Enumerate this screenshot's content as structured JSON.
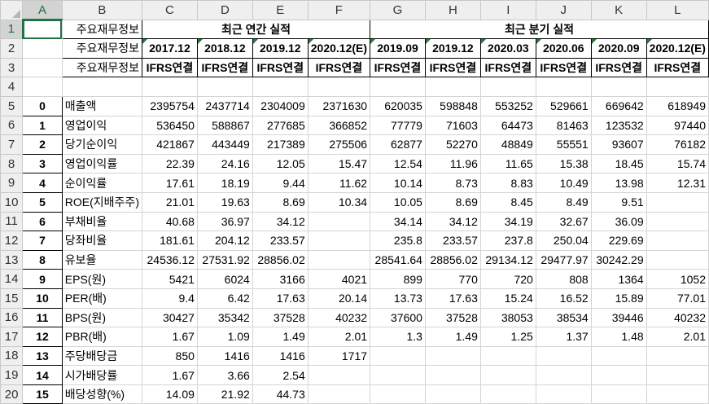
{
  "columns": [
    "A",
    "B",
    "C",
    "D",
    "E",
    "F",
    "G",
    "H",
    "I",
    "J",
    "K",
    "L"
  ],
  "rows": [
    {
      "num": "1",
      "cells": [
        {
          "t": "",
          "c": "selected"
        },
        {
          "t": "주요재무정보",
          "c": "right hdr-border"
        },
        {
          "t": "최근 연간 실적",
          "c": "bold hdr-border",
          "span": 4
        },
        {
          "t": "최근 분기 실적",
          "c": "bold hdr-border",
          "span": 6
        }
      ]
    },
    {
      "num": "2",
      "cells": [
        {
          "t": "",
          "c": ""
        },
        {
          "t": "주요재무정보",
          "c": "right hdr-border"
        },
        {
          "t": "2017.12",
          "c": "bold hdr-border tick"
        },
        {
          "t": "2018.12",
          "c": "bold hdr-border tick"
        },
        {
          "t": "2019.12",
          "c": "bold hdr-border tick"
        },
        {
          "t": "2020.12(E)",
          "c": "bold hdr-border tick"
        },
        {
          "t": "2019.09",
          "c": "bold hdr-border tick"
        },
        {
          "t": "2019.12",
          "c": "bold hdr-border tick"
        },
        {
          "t": "2020.03",
          "c": "bold hdr-border tick"
        },
        {
          "t": "2020.06",
          "c": "bold hdr-border tick"
        },
        {
          "t": "2020.09",
          "c": "bold hdr-border tick"
        },
        {
          "t": "2020.12(E)",
          "c": "bold hdr-border tick"
        }
      ]
    },
    {
      "num": "3",
      "cells": [
        {
          "t": "",
          "c": ""
        },
        {
          "t": "주요재무정보",
          "c": "right hdr-border"
        },
        {
          "t": "IFRS연결",
          "c": "bold hdr-border"
        },
        {
          "t": "IFRS연결",
          "c": "bold hdr-border"
        },
        {
          "t": "IFRS연결",
          "c": "bold hdr-border"
        },
        {
          "t": "IFRS연결",
          "c": "bold hdr-border"
        },
        {
          "t": "IFRS연결",
          "c": "bold hdr-border"
        },
        {
          "t": "IFRS연결",
          "c": "bold hdr-border"
        },
        {
          "t": "IFRS연결",
          "c": "bold hdr-border"
        },
        {
          "t": "IFRS연결",
          "c": "bold hdr-border"
        },
        {
          "t": "IFRS연결",
          "c": "bold hdr-border"
        },
        {
          "t": "IFRS연결",
          "c": "bold hdr-border"
        }
      ]
    },
    {
      "num": "4",
      "cells": [
        {
          "t": ""
        },
        {
          "t": ""
        },
        {
          "t": ""
        },
        {
          "t": ""
        },
        {
          "t": ""
        },
        {
          "t": ""
        },
        {
          "t": ""
        },
        {
          "t": ""
        },
        {
          "t": ""
        },
        {
          "t": ""
        },
        {
          "t": ""
        },
        {
          "t": ""
        }
      ]
    },
    {
      "num": "5",
      "cells": [
        {
          "t": "0",
          "c": "idx hdr-border"
        },
        {
          "t": "매출액",
          "c": "left"
        },
        {
          "t": "2395754",
          "c": "num"
        },
        {
          "t": "2437714",
          "c": "num"
        },
        {
          "t": "2304009",
          "c": "num"
        },
        {
          "t": "2371630",
          "c": "num"
        },
        {
          "t": "620035",
          "c": "num"
        },
        {
          "t": "598848",
          "c": "num"
        },
        {
          "t": "553252",
          "c": "num"
        },
        {
          "t": "529661",
          "c": "num"
        },
        {
          "t": "669642",
          "c": "num"
        },
        {
          "t": "618949",
          "c": "num"
        }
      ]
    },
    {
      "num": "6",
      "cells": [
        {
          "t": "1",
          "c": "idx hdr-border"
        },
        {
          "t": "영업이익",
          "c": "left"
        },
        {
          "t": "536450",
          "c": "num"
        },
        {
          "t": "588867",
          "c": "num"
        },
        {
          "t": "277685",
          "c": "num"
        },
        {
          "t": "366852",
          "c": "num"
        },
        {
          "t": "77779",
          "c": "num"
        },
        {
          "t": "71603",
          "c": "num"
        },
        {
          "t": "64473",
          "c": "num"
        },
        {
          "t": "81463",
          "c": "num"
        },
        {
          "t": "123532",
          "c": "num"
        },
        {
          "t": "97440",
          "c": "num"
        }
      ]
    },
    {
      "num": "7",
      "cells": [
        {
          "t": "2",
          "c": "idx hdr-border"
        },
        {
          "t": "당기순이익",
          "c": "left"
        },
        {
          "t": "421867",
          "c": "num"
        },
        {
          "t": "443449",
          "c": "num"
        },
        {
          "t": "217389",
          "c": "num"
        },
        {
          "t": "275506",
          "c": "num"
        },
        {
          "t": "62877",
          "c": "num"
        },
        {
          "t": "52270",
          "c": "num"
        },
        {
          "t": "48849",
          "c": "num"
        },
        {
          "t": "55551",
          "c": "num"
        },
        {
          "t": "93607",
          "c": "num"
        },
        {
          "t": "76182",
          "c": "num"
        }
      ]
    },
    {
      "num": "8",
      "cells": [
        {
          "t": "3",
          "c": "idx hdr-border"
        },
        {
          "t": "영업이익률",
          "c": "left"
        },
        {
          "t": "22.39",
          "c": "num"
        },
        {
          "t": "24.16",
          "c": "num"
        },
        {
          "t": "12.05",
          "c": "num"
        },
        {
          "t": "15.47",
          "c": "num"
        },
        {
          "t": "12.54",
          "c": "num"
        },
        {
          "t": "11.96",
          "c": "num"
        },
        {
          "t": "11.65",
          "c": "num"
        },
        {
          "t": "15.38",
          "c": "num"
        },
        {
          "t": "18.45",
          "c": "num"
        },
        {
          "t": "15.74",
          "c": "num"
        }
      ]
    },
    {
      "num": "9",
      "cells": [
        {
          "t": "4",
          "c": "idx hdr-border"
        },
        {
          "t": "순이익률",
          "c": "left"
        },
        {
          "t": "17.61",
          "c": "num"
        },
        {
          "t": "18.19",
          "c": "num"
        },
        {
          "t": "9.44",
          "c": "num"
        },
        {
          "t": "11.62",
          "c": "num"
        },
        {
          "t": "10.14",
          "c": "num"
        },
        {
          "t": "8.73",
          "c": "num"
        },
        {
          "t": "8.83",
          "c": "num"
        },
        {
          "t": "10.49",
          "c": "num"
        },
        {
          "t": "13.98",
          "c": "num"
        },
        {
          "t": "12.31",
          "c": "num"
        }
      ]
    },
    {
      "num": "10",
      "cells": [
        {
          "t": "5",
          "c": "idx hdr-border"
        },
        {
          "t": "ROE(지배주주)",
          "c": "left"
        },
        {
          "t": "21.01",
          "c": "num"
        },
        {
          "t": "19.63",
          "c": "num"
        },
        {
          "t": "8.69",
          "c": "num"
        },
        {
          "t": "10.34",
          "c": "num"
        },
        {
          "t": "10.05",
          "c": "num"
        },
        {
          "t": "8.69",
          "c": "num"
        },
        {
          "t": "8.45",
          "c": "num"
        },
        {
          "t": "8.49",
          "c": "num"
        },
        {
          "t": "9.51",
          "c": "num"
        },
        {
          "t": "",
          "c": "num"
        }
      ]
    },
    {
      "num": "11",
      "cells": [
        {
          "t": "6",
          "c": "idx hdr-border"
        },
        {
          "t": "부채비율",
          "c": "left"
        },
        {
          "t": "40.68",
          "c": "num"
        },
        {
          "t": "36.97",
          "c": "num"
        },
        {
          "t": "34.12",
          "c": "num"
        },
        {
          "t": "",
          "c": "num"
        },
        {
          "t": "34.14",
          "c": "num"
        },
        {
          "t": "34.12",
          "c": "num"
        },
        {
          "t": "34.19",
          "c": "num"
        },
        {
          "t": "32.67",
          "c": "num"
        },
        {
          "t": "36.09",
          "c": "num"
        },
        {
          "t": "",
          "c": "num"
        }
      ]
    },
    {
      "num": "12",
      "cells": [
        {
          "t": "7",
          "c": "idx hdr-border"
        },
        {
          "t": "당좌비율",
          "c": "left"
        },
        {
          "t": "181.61",
          "c": "num"
        },
        {
          "t": "204.12",
          "c": "num"
        },
        {
          "t": "233.57",
          "c": "num"
        },
        {
          "t": "",
          "c": "num"
        },
        {
          "t": "235.8",
          "c": "num"
        },
        {
          "t": "233.57",
          "c": "num"
        },
        {
          "t": "237.8",
          "c": "num"
        },
        {
          "t": "250.04",
          "c": "num"
        },
        {
          "t": "229.69",
          "c": "num"
        },
        {
          "t": "",
          "c": "num"
        }
      ]
    },
    {
      "num": "13",
      "cells": [
        {
          "t": "8",
          "c": "idx hdr-border"
        },
        {
          "t": "유보율",
          "c": "left"
        },
        {
          "t": "24536.12",
          "c": "num"
        },
        {
          "t": "27531.92",
          "c": "num"
        },
        {
          "t": "28856.02",
          "c": "num"
        },
        {
          "t": "",
          "c": "num"
        },
        {
          "t": "28541.64",
          "c": "num"
        },
        {
          "t": "28856.02",
          "c": "num"
        },
        {
          "t": "29134.12",
          "c": "num"
        },
        {
          "t": "29477.97",
          "c": "num"
        },
        {
          "t": "30242.29",
          "c": "num"
        },
        {
          "t": "",
          "c": "num"
        }
      ]
    },
    {
      "num": "14",
      "cells": [
        {
          "t": "9",
          "c": "idx hdr-border"
        },
        {
          "t": "EPS(원)",
          "c": "left"
        },
        {
          "t": "5421",
          "c": "num"
        },
        {
          "t": "6024",
          "c": "num"
        },
        {
          "t": "3166",
          "c": "num"
        },
        {
          "t": "4021",
          "c": "num"
        },
        {
          "t": "899",
          "c": "num"
        },
        {
          "t": "770",
          "c": "num"
        },
        {
          "t": "720",
          "c": "num"
        },
        {
          "t": "808",
          "c": "num"
        },
        {
          "t": "1364",
          "c": "num"
        },
        {
          "t": "1052",
          "c": "num"
        }
      ]
    },
    {
      "num": "15",
      "cells": [
        {
          "t": "10",
          "c": "idx hdr-border"
        },
        {
          "t": "PER(배)",
          "c": "left"
        },
        {
          "t": "9.4",
          "c": "num"
        },
        {
          "t": "6.42",
          "c": "num"
        },
        {
          "t": "17.63",
          "c": "num"
        },
        {
          "t": "20.14",
          "c": "num"
        },
        {
          "t": "13.73",
          "c": "num"
        },
        {
          "t": "17.63",
          "c": "num"
        },
        {
          "t": "15.24",
          "c": "num"
        },
        {
          "t": "16.52",
          "c": "num"
        },
        {
          "t": "15.89",
          "c": "num"
        },
        {
          "t": "77.01",
          "c": "num"
        }
      ]
    },
    {
      "num": "16",
      "cells": [
        {
          "t": "11",
          "c": "idx hdr-border"
        },
        {
          "t": "BPS(원)",
          "c": "left"
        },
        {
          "t": "30427",
          "c": "num"
        },
        {
          "t": "35342",
          "c": "num"
        },
        {
          "t": "37528",
          "c": "num"
        },
        {
          "t": "40232",
          "c": "num"
        },
        {
          "t": "37600",
          "c": "num"
        },
        {
          "t": "37528",
          "c": "num"
        },
        {
          "t": "38053",
          "c": "num"
        },
        {
          "t": "38534",
          "c": "num"
        },
        {
          "t": "39446",
          "c": "num"
        },
        {
          "t": "40232",
          "c": "num"
        }
      ]
    },
    {
      "num": "17",
      "cells": [
        {
          "t": "12",
          "c": "idx hdr-border"
        },
        {
          "t": "PBR(배)",
          "c": "left"
        },
        {
          "t": "1.67",
          "c": "num"
        },
        {
          "t": "1.09",
          "c": "num"
        },
        {
          "t": "1.49",
          "c": "num"
        },
        {
          "t": "2.01",
          "c": "num"
        },
        {
          "t": "1.3",
          "c": "num"
        },
        {
          "t": "1.49",
          "c": "num"
        },
        {
          "t": "1.25",
          "c": "num"
        },
        {
          "t": "1.37",
          "c": "num"
        },
        {
          "t": "1.48",
          "c": "num"
        },
        {
          "t": "2.01",
          "c": "num"
        }
      ]
    },
    {
      "num": "18",
      "cells": [
        {
          "t": "13",
          "c": "idx hdr-border"
        },
        {
          "t": "주당배당금",
          "c": "left"
        },
        {
          "t": "850",
          "c": "num"
        },
        {
          "t": "1416",
          "c": "num"
        },
        {
          "t": "1416",
          "c": "num"
        },
        {
          "t": "1717",
          "c": "num"
        },
        {
          "t": ""
        },
        {
          "t": ""
        },
        {
          "t": ""
        },
        {
          "t": ""
        },
        {
          "t": ""
        },
        {
          "t": ""
        }
      ]
    },
    {
      "num": "19",
      "cells": [
        {
          "t": "14",
          "c": "idx hdr-border"
        },
        {
          "t": "시가배당률",
          "c": "left"
        },
        {
          "t": "1.67",
          "c": "num"
        },
        {
          "t": "3.66",
          "c": "num"
        },
        {
          "t": "2.54",
          "c": "num"
        },
        {
          "t": ""
        },
        {
          "t": ""
        },
        {
          "t": ""
        },
        {
          "t": ""
        },
        {
          "t": ""
        },
        {
          "t": ""
        },
        {
          "t": ""
        }
      ]
    },
    {
      "num": "20",
      "cells": [
        {
          "t": "15",
          "c": "idx hdr-border"
        },
        {
          "t": "배당성향(%)",
          "c": "left"
        },
        {
          "t": "14.09",
          "c": "num"
        },
        {
          "t": "21.92",
          "c": "num"
        },
        {
          "t": "44.73",
          "c": "num"
        },
        {
          "t": ""
        },
        {
          "t": ""
        },
        {
          "t": ""
        },
        {
          "t": ""
        },
        {
          "t": ""
        },
        {
          "t": ""
        },
        {
          "t": ""
        }
      ]
    }
  ],
  "colors": {
    "selection": "#217346",
    "header_bg": "#efefef"
  }
}
